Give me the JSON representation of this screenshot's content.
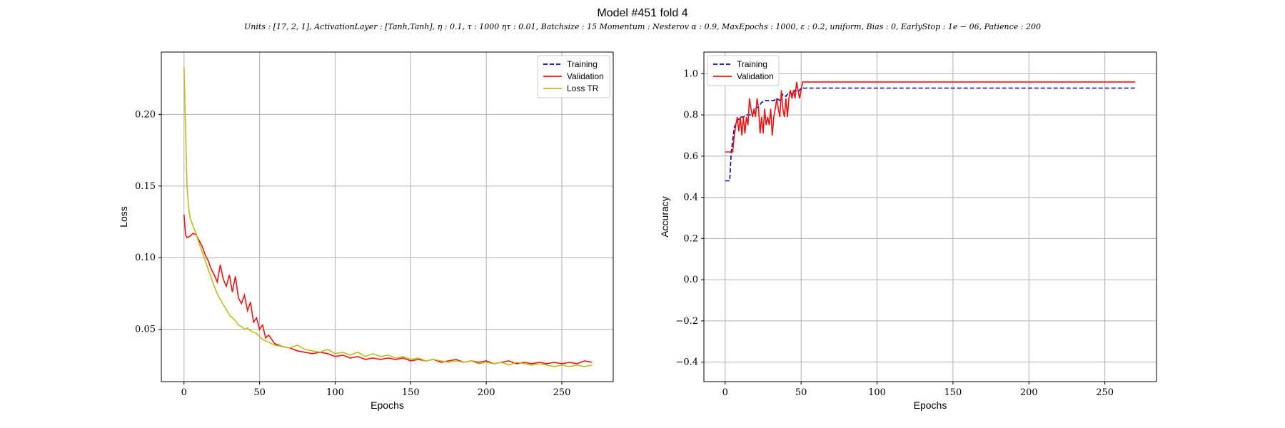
{
  "figure": {
    "title": "Model #451 fold 4",
    "subtitle": "Units : [17, 2, 1], ActivationLayer : [Tanh,Tanh], η : 0.1, τ : 1000 ητ : 0.01, Batchsize : 15 Momentum : Nesterov α : 0.9, MaxEpochs : 1000, ε : 0.2, uniform, Bias : 0, EarlyStop : 1e − 06, Patience : 200"
  },
  "chart_data": [
    {
      "type": "line",
      "title": "",
      "xlabel": "Epochs",
      "ylabel": "Loss",
      "xlim": [
        -15,
        284
      ],
      "ylim": [
        0.0135,
        0.2435
      ],
      "xticks": [
        0,
        50,
        100,
        150,
        200,
        250
      ],
      "yticks": [
        0.05,
        0.1,
        0.15,
        0.2
      ],
      "ytick_labels": [
        "0.05",
        "0.10",
        "0.15",
        "0.20"
      ],
      "grid": true,
      "legend_position": "top-right",
      "series": [
        {
          "name": "Training",
          "style": "dashed",
          "color": "#0000cc",
          "show_line": false,
          "points": []
        },
        {
          "name": "Validation",
          "style": "solid",
          "color": "#ee1111",
          "points": [
            [
              0,
              0.13
            ],
            [
              1,
              0.116
            ],
            [
              2,
              0.114
            ],
            [
              4,
              0.115
            ],
            [
              6,
              0.117
            ],
            [
              8,
              0.116
            ],
            [
              10,
              0.112
            ],
            [
              12,
              0.108
            ],
            [
              14,
              0.102
            ],
            [
              16,
              0.098
            ],
            [
              18,
              0.092
            ],
            [
              20,
              0.088
            ],
            [
              22,
              0.083
            ],
            [
              24,
              0.095
            ],
            [
              26,
              0.085
            ],
            [
              28,
              0.08
            ],
            [
              30,
              0.088
            ],
            [
              32,
              0.076
            ],
            [
              34,
              0.087
            ],
            [
              36,
              0.072
            ],
            [
              38,
              0.068
            ],
            [
              40,
              0.074
            ],
            [
              42,
              0.063
            ],
            [
              44,
              0.069
            ],
            [
              46,
              0.055
            ],
            [
              48,
              0.058
            ],
            [
              50,
              0.05
            ],
            [
              52,
              0.053
            ],
            [
              54,
              0.044
            ],
            [
              56,
              0.046
            ],
            [
              60,
              0.04
            ],
            [
              65,
              0.038
            ],
            [
              70,
              0.037
            ],
            [
              75,
              0.035
            ],
            [
              80,
              0.034
            ],
            [
              85,
              0.033
            ],
            [
              90,
              0.034
            ],
            [
              95,
              0.033
            ],
            [
              100,
              0.031
            ],
            [
              105,
              0.032
            ],
            [
              110,
              0.03
            ],
            [
              115,
              0.031
            ],
            [
              120,
              0.029
            ],
            [
              125,
              0.03
            ],
            [
              130,
              0.029
            ],
            [
              135,
              0.03
            ],
            [
              140,
              0.029
            ],
            [
              145,
              0.03
            ],
            [
              150,
              0.028
            ],
            [
              155,
              0.029
            ],
            [
              160,
              0.028
            ],
            [
              165,
              0.029
            ],
            [
              170,
              0.027
            ],
            [
              175,
              0.028
            ],
            [
              180,
              0.029
            ],
            [
              185,
              0.027
            ],
            [
              190,
              0.028
            ],
            [
              195,
              0.027
            ],
            [
              200,
              0.028
            ],
            [
              205,
              0.026
            ],
            [
              210,
              0.027
            ],
            [
              215,
              0.028
            ],
            [
              220,
              0.026
            ],
            [
              225,
              0.027
            ],
            [
              230,
              0.026
            ],
            [
              235,
              0.027
            ],
            [
              240,
              0.026
            ],
            [
              245,
              0.027
            ],
            [
              250,
              0.026
            ],
            [
              255,
              0.027
            ],
            [
              260,
              0.026
            ],
            [
              265,
              0.028
            ],
            [
              270,
              0.027
            ]
          ]
        },
        {
          "name": "Loss TR",
          "style": "solid",
          "color": "#bdbd1a",
          "points": [
            [
              0,
              0.233
            ],
            [
              1,
              0.19
            ],
            [
              2,
              0.15
            ],
            [
              3,
              0.135
            ],
            [
              4,
              0.128
            ],
            [
              6,
              0.122
            ],
            [
              8,
              0.117
            ],
            [
              10,
              0.11
            ],
            [
              12,
              0.104
            ],
            [
              14,
              0.098
            ],
            [
              16,
              0.092
            ],
            [
              18,
              0.086
            ],
            [
              20,
              0.08
            ],
            [
              22,
              0.075
            ],
            [
              24,
              0.071
            ],
            [
              26,
              0.067
            ],
            [
              28,
              0.064
            ],
            [
              30,
              0.06
            ],
            [
              32,
              0.058
            ],
            [
              34,
              0.056
            ],
            [
              36,
              0.053
            ],
            [
              38,
              0.052
            ],
            [
              40,
              0.05
            ],
            [
              42,
              0.051
            ],
            [
              44,
              0.049
            ],
            [
              46,
              0.048
            ],
            [
              48,
              0.047
            ],
            [
              50,
              0.045
            ],
            [
              52,
              0.043
            ],
            [
              54,
              0.042
            ],
            [
              56,
              0.041
            ],
            [
              60,
              0.039
            ],
            [
              65,
              0.038
            ],
            [
              70,
              0.037
            ],
            [
              75,
              0.039
            ],
            [
              80,
              0.036
            ],
            [
              85,
              0.035
            ],
            [
              90,
              0.034
            ],
            [
              95,
              0.036
            ],
            [
              100,
              0.033
            ],
            [
              105,
              0.034
            ],
            [
              110,
              0.032
            ],
            [
              115,
              0.034
            ],
            [
              120,
              0.031
            ],
            [
              125,
              0.033
            ],
            [
              130,
              0.031
            ],
            [
              135,
              0.032
            ],
            [
              140,
              0.03
            ],
            [
              145,
              0.031
            ],
            [
              150,
              0.029
            ],
            [
              155,
              0.03
            ],
            [
              160,
              0.028
            ],
            [
              165,
              0.029
            ],
            [
              170,
              0.028
            ],
            [
              175,
              0.027
            ],
            [
              180,
              0.028
            ],
            [
              185,
              0.027
            ],
            [
              190,
              0.028
            ],
            [
              195,
              0.026
            ],
            [
              200,
              0.027
            ],
            [
              205,
              0.026
            ],
            [
              210,
              0.027
            ],
            [
              215,
              0.025
            ],
            [
              220,
              0.027
            ],
            [
              225,
              0.026
            ],
            [
              230,
              0.025
            ],
            [
              235,
              0.026
            ],
            [
              240,
              0.025
            ],
            [
              245,
              0.024
            ],
            [
              250,
              0.025
            ],
            [
              255,
              0.024
            ],
            [
              260,
              0.025
            ],
            [
              265,
              0.024
            ],
            [
              270,
              0.025
            ]
          ]
        }
      ]
    },
    {
      "type": "line",
      "title": "",
      "xlabel": "Epochs",
      "ylabel": "Accuracy",
      "xlim": [
        -14,
        284
      ],
      "ylim": [
        -0.495,
        1.105
      ],
      "xticks": [
        0,
        50,
        100,
        150,
        200,
        250
      ],
      "yticks": [
        -0.4,
        -0.2,
        0.0,
        0.2,
        0.4,
        0.6,
        0.8,
        1.0
      ],
      "ytick_labels": [
        "−0.4",
        "−0.2",
        "0.0",
        "0.2",
        "0.4",
        "0.6",
        "0.8",
        "1.0"
      ],
      "grid": true,
      "legend_position": "top-left",
      "series": [
        {
          "name": "Training",
          "style": "dashed",
          "color": "#0000cc",
          "points": [
            [
              0,
              0.48
            ],
            [
              3,
              0.48
            ],
            [
              4,
              0.62
            ],
            [
              6,
              0.74
            ],
            [
              8,
              0.77
            ],
            [
              10,
              0.79
            ],
            [
              12,
              0.79
            ],
            [
              14,
              0.8
            ],
            [
              18,
              0.8
            ],
            [
              20,
              0.83
            ],
            [
              22,
              0.84
            ],
            [
              24,
              0.86
            ],
            [
              26,
              0.87
            ],
            [
              32,
              0.87
            ],
            [
              34,
              0.88
            ],
            [
              36,
              0.87
            ],
            [
              38,
              0.9
            ],
            [
              40,
              0.89
            ],
            [
              42,
              0.91
            ],
            [
              44,
              0.9
            ],
            [
              46,
              0.92
            ],
            [
              48,
              0.91
            ],
            [
              50,
              0.93
            ],
            [
              270,
              0.93
            ]
          ]
        },
        {
          "name": "Validation",
          "style": "solid",
          "color": "#ee1111",
          "points": [
            [
              0,
              0.62
            ],
            [
              5,
              0.62
            ],
            [
              6,
              0.7
            ],
            [
              7,
              0.75
            ],
            [
              8,
              0.79
            ],
            [
              9,
              0.72
            ],
            [
              10,
              0.79
            ],
            [
              11,
              0.7
            ],
            [
              12,
              0.79
            ],
            [
              13,
              0.71
            ],
            [
              14,
              0.79
            ],
            [
              15,
              0.75
            ],
            [
              16,
              0.88
            ],
            [
              17,
              0.83
            ],
            [
              18,
              0.79
            ],
            [
              19,
              0.83
            ],
            [
              20,
              0.79
            ],
            [
              21,
              0.88
            ],
            [
              22,
              0.83
            ],
            [
              23,
              0.71
            ],
            [
              24,
              0.79
            ],
            [
              25,
              0.71
            ],
            [
              26,
              0.83
            ],
            [
              27,
              0.75
            ],
            [
              28,
              0.79
            ],
            [
              29,
              0.75
            ],
            [
              30,
              0.83
            ],
            [
              31,
              0.7
            ],
            [
              32,
              0.79
            ],
            [
              33,
              0.83
            ],
            [
              34,
              0.88
            ],
            [
              35,
              0.83
            ],
            [
              36,
              0.79
            ],
            [
              37,
              0.92
            ],
            [
              38,
              0.83
            ],
            [
              39,
              0.79
            ],
            [
              40,
              0.88
            ],
            [
              41,
              0.79
            ],
            [
              42,
              0.88
            ],
            [
              43,
              0.92
            ],
            [
              44,
              0.88
            ],
            [
              45,
              0.92
            ],
            [
              46,
              0.88
            ],
            [
              47,
              0.96
            ],
            [
              48,
              0.92
            ],
            [
              49,
              0.88
            ],
            [
              50,
              0.92
            ],
            [
              51,
              0.96
            ],
            [
              270,
              0.96
            ]
          ]
        }
      ]
    }
  ]
}
